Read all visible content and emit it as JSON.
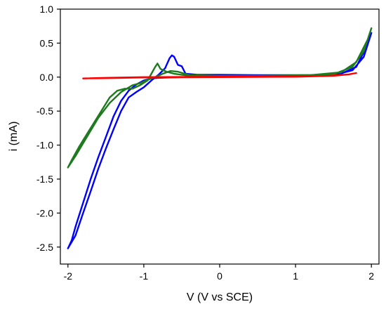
{
  "chart_data": {
    "type": "line",
    "xlabel": "V (V vs SCE)",
    "ylabel": "i (mA)",
    "xlim": [
      -2.1,
      2.1
    ],
    "ylim": [
      -2.75,
      1.0
    ],
    "xticks": [
      -2,
      -1,
      0,
      1,
      2
    ],
    "xtick_labels": [
      "-2",
      "-1",
      "0",
      "1",
      "2"
    ],
    "yticks": [
      1.0,
      0.5,
      0.0,
      -0.5,
      -1.0,
      -1.5,
      -2.0,
      -2.5
    ],
    "ytick_labels": [
      "1.0",
      "0.5",
      "0.0",
      "-0.5",
      "-1.0",
      "-1.5",
      "-2.0",
      "-2.5"
    ],
    "grid": false,
    "series": [
      {
        "color": "#0000ff",
        "points": [
          [
            -2.0,
            -2.52
          ],
          [
            -1.95,
            -2.4
          ],
          [
            -1.9,
            -2.2
          ],
          [
            -1.8,
            -1.85
          ],
          [
            -1.7,
            -1.5
          ],
          [
            -1.6,
            -1.18
          ],
          [
            -1.5,
            -0.88
          ],
          [
            -1.4,
            -0.58
          ],
          [
            -1.3,
            -0.35
          ],
          [
            -1.2,
            -0.2
          ],
          [
            -1.1,
            -0.11
          ],
          [
            -1.0,
            -0.05
          ],
          [
            -0.9,
            -0.02
          ],
          [
            -0.8,
            -0.01
          ],
          [
            -0.5,
            0.0
          ],
          [
            0.0,
            0.01
          ],
          [
            1.0,
            0.015
          ],
          [
            1.5,
            0.03
          ],
          [
            1.75,
            0.1
          ],
          [
            1.9,
            0.3
          ],
          [
            2.0,
            0.65
          ],
          [
            1.95,
            0.48
          ],
          [
            1.8,
            0.15
          ],
          [
            1.6,
            0.05
          ],
          [
            1.2,
            0.03
          ],
          [
            0.5,
            0.03
          ],
          [
            0.0,
            0.035
          ],
          [
            -0.3,
            0.035
          ],
          [
            -0.45,
            0.05
          ],
          [
            -0.5,
            0.16
          ],
          [
            -0.55,
            0.18
          ],
          [
            -0.6,
            0.3
          ],
          [
            -0.63,
            0.32
          ],
          [
            -0.66,
            0.28
          ],
          [
            -0.72,
            0.13
          ],
          [
            -0.8,
            0.04
          ],
          [
            -0.9,
            -0.05
          ],
          [
            -1.0,
            -0.15
          ],
          [
            -1.1,
            -0.22
          ],
          [
            -1.2,
            -0.3
          ],
          [
            -1.3,
            -0.5
          ],
          [
            -1.4,
            -0.77
          ],
          [
            -1.5,
            -1.05
          ],
          [
            -1.6,
            -1.35
          ],
          [
            -1.7,
            -1.68
          ],
          [
            -1.8,
            -2.0
          ],
          [
            -1.9,
            -2.33
          ],
          [
            -2.0,
            -2.52
          ]
        ]
      },
      {
        "color": "#1e7a1e",
        "points": [
          [
            -2.0,
            -1.33
          ],
          [
            -1.95,
            -1.22
          ],
          [
            -1.85,
            -1.02
          ],
          [
            -1.7,
            -0.75
          ],
          [
            -1.55,
            -0.48
          ],
          [
            -1.45,
            -0.3
          ],
          [
            -1.35,
            -0.2
          ],
          [
            -1.25,
            -0.17
          ],
          [
            -1.15,
            -0.17
          ],
          [
            -1.05,
            -0.12
          ],
          [
            -0.95,
            -0.05
          ],
          [
            -0.9,
            0.05
          ],
          [
            -0.85,
            0.15
          ],
          [
            -0.82,
            0.2
          ],
          [
            -0.78,
            0.12
          ],
          [
            -0.7,
            0.08
          ],
          [
            -0.6,
            0.05
          ],
          [
            -0.4,
            0.02
          ],
          [
            0.0,
            0.015
          ],
          [
            1.0,
            0.02
          ],
          [
            1.5,
            0.04
          ],
          [
            1.75,
            0.15
          ],
          [
            1.9,
            0.38
          ],
          [
            2.0,
            0.72
          ],
          [
            1.95,
            0.55
          ],
          [
            1.8,
            0.22
          ],
          [
            1.6,
            0.07
          ],
          [
            1.2,
            0.03
          ],
          [
            0.5,
            0.02
          ],
          [
            0.0,
            0.02
          ],
          [
            -0.4,
            0.03
          ],
          [
            -0.55,
            0.08
          ],
          [
            -0.65,
            0.09
          ],
          [
            -0.75,
            0.05
          ],
          [
            -0.85,
            0.0
          ],
          [
            -0.95,
            -0.04
          ],
          [
            -1.05,
            -0.09
          ],
          [
            -1.15,
            -0.12
          ],
          [
            -1.3,
            -0.22
          ],
          [
            -1.45,
            -0.38
          ],
          [
            -1.6,
            -0.6
          ],
          [
            -1.75,
            -0.88
          ],
          [
            -1.9,
            -1.16
          ],
          [
            -2.0,
            -1.33
          ]
        ]
      },
      {
        "color": "#ff0000",
        "points": [
          [
            -1.8,
            -0.02
          ],
          [
            -1.5,
            -0.015
          ],
          [
            -1.0,
            -0.005
          ],
          [
            0.0,
            0.0
          ],
          [
            1.0,
            0.005
          ],
          [
            1.5,
            0.02
          ],
          [
            1.7,
            0.04
          ],
          [
            1.8,
            0.06
          ],
          [
            1.7,
            0.04
          ],
          [
            1.4,
            0.015
          ],
          [
            1.0,
            0.01
          ],
          [
            0.0,
            0.005
          ],
          [
            -1.0,
            0.0
          ],
          [
            -1.5,
            -0.01
          ],
          [
            -1.8,
            -0.02
          ]
        ]
      }
    ]
  }
}
